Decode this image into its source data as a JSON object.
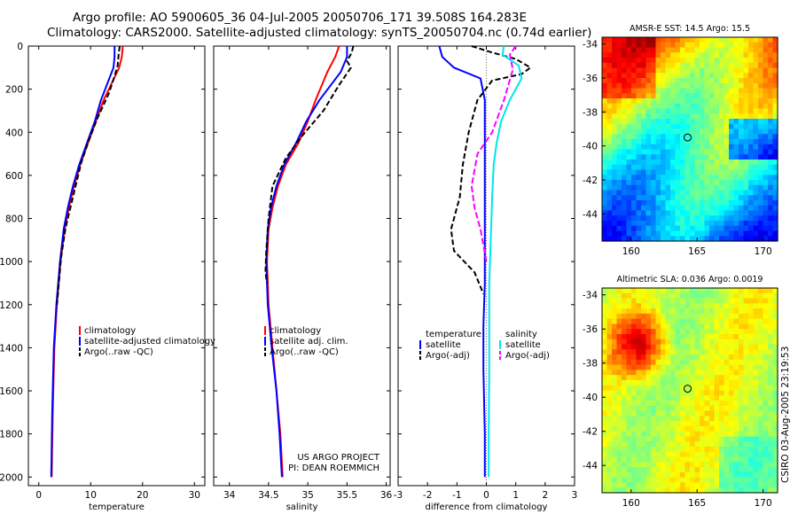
{
  "header": {
    "line1": "Argo profile: AO 5900605_36 04-Jul-2005 20050706_171 39.508S 164.283E",
    "line2": "Climatology: CARS2000. Satellite-adjusted climatology: synTS_20050704.nc (0.74d earlier)"
  },
  "credit": "CSIRO 03-Aug-2005 23:19:53",
  "project": {
    "line1": "US ARGO PROJECT",
    "line2": "PI: DEAN ROEMMICH"
  },
  "colors": {
    "climatology": "#ff0000",
    "satellite": "#0000ff",
    "argo": "#000000",
    "salinity_sat": "#00e5ee",
    "salinity_argo": "#ff00ff",
    "land": "#f5c39a",
    "axis": "#000000"
  },
  "chart_data": [
    {
      "type": "line",
      "xlabel": "temperature",
      "xlim": [
        -2,
        32
      ],
      "xticks": [
        "0",
        "10",
        "20",
        "30"
      ],
      "xtick_values": [
        0,
        10,
        20,
        30
      ],
      "ylim": [
        2040,
        0
      ],
      "yticks": [
        "0",
        "200",
        "400",
        "600",
        "800",
        "1000",
        "1200",
        "1400",
        "1600",
        "1800",
        "2000"
      ],
      "ytick_values": [
        0,
        200,
        400,
        600,
        800,
        1000,
        1200,
        1400,
        1600,
        1800,
        2000
      ],
      "legend": [
        "climatology",
        "satellite-adjusted climatology",
        "Argo(..raw -QC)"
      ],
      "series": [
        {
          "name": "climatology",
          "color": "#ff0000",
          "dash": "",
          "x": [
            16.2,
            16,
            15.5,
            14.5,
            12.5,
            11,
            9.5,
            8,
            6.8,
            5.8,
            5,
            4.2,
            3.5,
            3,
            2.7,
            2.5
          ],
          "y": [
            0,
            50,
            100,
            150,
            250,
            350,
            450,
            550,
            650,
            750,
            850,
            1000,
            1200,
            1400,
            1700,
            2000
          ]
        },
        {
          "name": "satellite-adjusted climatology",
          "color": "#0000ff",
          "dash": "",
          "x": [
            14.6,
            14.6,
            14.4,
            13.6,
            12,
            10.8,
            9.3,
            7.8,
            6.6,
            5.6,
            4.8,
            4.1,
            3.4,
            2.9,
            2.6,
            2.4
          ],
          "y": [
            0,
            50,
            100,
            150,
            250,
            350,
            450,
            550,
            650,
            750,
            850,
            1000,
            1200,
            1400,
            1700,
            2000
          ]
        },
        {
          "name": "Argo(..raw -QC)",
          "color": "#000000",
          "dash": "6,3",
          "x": [
            15.6,
            15.4,
            15.2,
            14.6,
            13.5,
            11.2,
            9.6,
            8.2,
            7.2,
            6.2,
            5.2,
            4.3,
            3.5
          ],
          "y": [
            0,
            40,
            90,
            140,
            220,
            340,
            440,
            540,
            640,
            740,
            840,
            980,
            1200
          ]
        }
      ]
    },
    {
      "type": "line",
      "xlabel": "salinity",
      "xlim": [
        33.8,
        36.05
      ],
      "xticks": [
        "34",
        "34.5",
        "35",
        "35.5",
        "36"
      ],
      "xtick_values": [
        34,
        34.5,
        35,
        35.5,
        36
      ],
      "ylim": [
        2040,
        0
      ],
      "legend": [
        "climatology",
        "satellite adj. clim.",
        "Argo(..raw -QC)"
      ],
      "annotation": [
        "US ARGO PROJECT",
        "PI: DEAN ROEMMICH"
      ],
      "series": [
        {
          "name": "climatology",
          "color": "#ff0000",
          "dash": "",
          "x": [
            35.4,
            35.35,
            35.25,
            35.1,
            35.0,
            34.88,
            34.72,
            34.62,
            34.55,
            34.5,
            34.48,
            34.5,
            34.55,
            34.6,
            34.65,
            34.68
          ],
          "y": [
            0,
            50,
            120,
            250,
            350,
            450,
            550,
            650,
            750,
            850,
            1000,
            1200,
            1400,
            1600,
            1800,
            2000
          ]
        },
        {
          "name": "satellite adj. clim.",
          "color": "#0000ff",
          "dash": "",
          "x": [
            35.5,
            35.5,
            35.42,
            35.15,
            34.98,
            34.85,
            34.7,
            34.6,
            34.53,
            34.49,
            34.47,
            34.49,
            34.54,
            34.6,
            34.64,
            34.67
          ],
          "y": [
            0,
            50,
            120,
            250,
            350,
            450,
            550,
            650,
            750,
            850,
            1000,
            1200,
            1400,
            1600,
            1800,
            2000
          ]
        },
        {
          "name": "Argo(..raw -QC)",
          "color": "#000000",
          "dash": "6,3",
          "x": [
            35.58,
            35.56,
            35.5,
            35.55,
            35.4,
            35.2,
            34.92,
            34.72,
            34.55,
            34.5,
            34.47,
            34.46,
            34.48
          ],
          "y": [
            0,
            30,
            70,
            100,
            180,
            300,
            420,
            520,
            650,
            800,
            950,
            1050,
            1100
          ]
        }
      ]
    },
    {
      "type": "line",
      "xlabel": "difference from climatology",
      "xlim": [
        -3,
        3
      ],
      "xticks": [
        "-3",
        "-2",
        "-1",
        "0",
        "1",
        "2",
        "3"
      ],
      "xtick_values": [
        -3,
        -2,
        -1,
        0,
        1,
        2,
        3
      ],
      "ylim": [
        2040,
        0
      ],
      "legend": [
        "temperature",
        "satellite",
        "Argo(-adj)",
        "salinity",
        "satellite",
        "Argo(-adj)"
      ],
      "series": [
        {
          "name": "temperature satellite",
          "color": "#0000ff",
          "dash": "",
          "x": [
            -1.6,
            -1.5,
            -1.1,
            -0.2,
            -0.05,
            -0.05,
            -0.05,
            -0.05,
            -0.05,
            -0.05,
            -0.1,
            -0.1,
            -0.05,
            -0.05
          ],
          "y": [
            0,
            50,
            100,
            150,
            250,
            350,
            500,
            700,
            900,
            1100,
            1300,
            1500,
            1800,
            2000
          ]
        },
        {
          "name": "temperature Argo(-adj)",
          "color": "#000000",
          "dash": "6,3",
          "x": [
            -0.5,
            0.2,
            1.0,
            1.5,
            1.2,
            0.2,
            -0.3,
            -0.6,
            -0.8,
            -0.9,
            -1.2,
            -1.1,
            -0.4,
            -0.1
          ],
          "y": [
            0,
            30,
            60,
            100,
            130,
            160,
            250,
            400,
            550,
            700,
            850,
            950,
            1050,
            1150
          ]
        },
        {
          "name": "salinity satellite",
          "color": "#00e5ee",
          "dash": "",
          "x": [
            0.6,
            0.55,
            1.1,
            1.2,
            0.8,
            0.5,
            0.35,
            0.25,
            0.2,
            0.15,
            0.1,
            0.1,
            0.1,
            0.08,
            0.08
          ],
          "y": [
            0,
            40,
            90,
            150,
            250,
            350,
            450,
            550,
            700,
            900,
            1100,
            1300,
            1500,
            1800,
            2000
          ]
        },
        {
          "name": "salinity Argo(-adj)",
          "color": "#ff00ff",
          "dash": "7,3",
          "x": [
            1.0,
            0.8,
            0.9,
            0.6,
            0.2,
            -0.3,
            -0.5,
            -0.4,
            -0.2,
            0.0
          ],
          "y": [
            0,
            40,
            110,
            250,
            400,
            500,
            650,
            750,
            850,
            1000
          ]
        }
      ]
    }
  ],
  "maps": [
    {
      "title": "AMSR-E SST: 14.5 Argo: 15.5",
      "xticks": [
        "160",
        "165",
        "170"
      ],
      "yticks": [
        "-34",
        "-36",
        "-38",
        "-40",
        "-42",
        "-44"
      ],
      "marker": [
        164.28,
        -39.5
      ]
    },
    {
      "title": "Altimetric SLA: 0.036 Argo: 0.0019",
      "xticks": [
        "160",
        "165",
        "170"
      ],
      "yticks": [
        "-34",
        "-36",
        "-38",
        "-40",
        "-42",
        "-44"
      ],
      "marker": [
        164.28,
        -39.5
      ]
    }
  ]
}
